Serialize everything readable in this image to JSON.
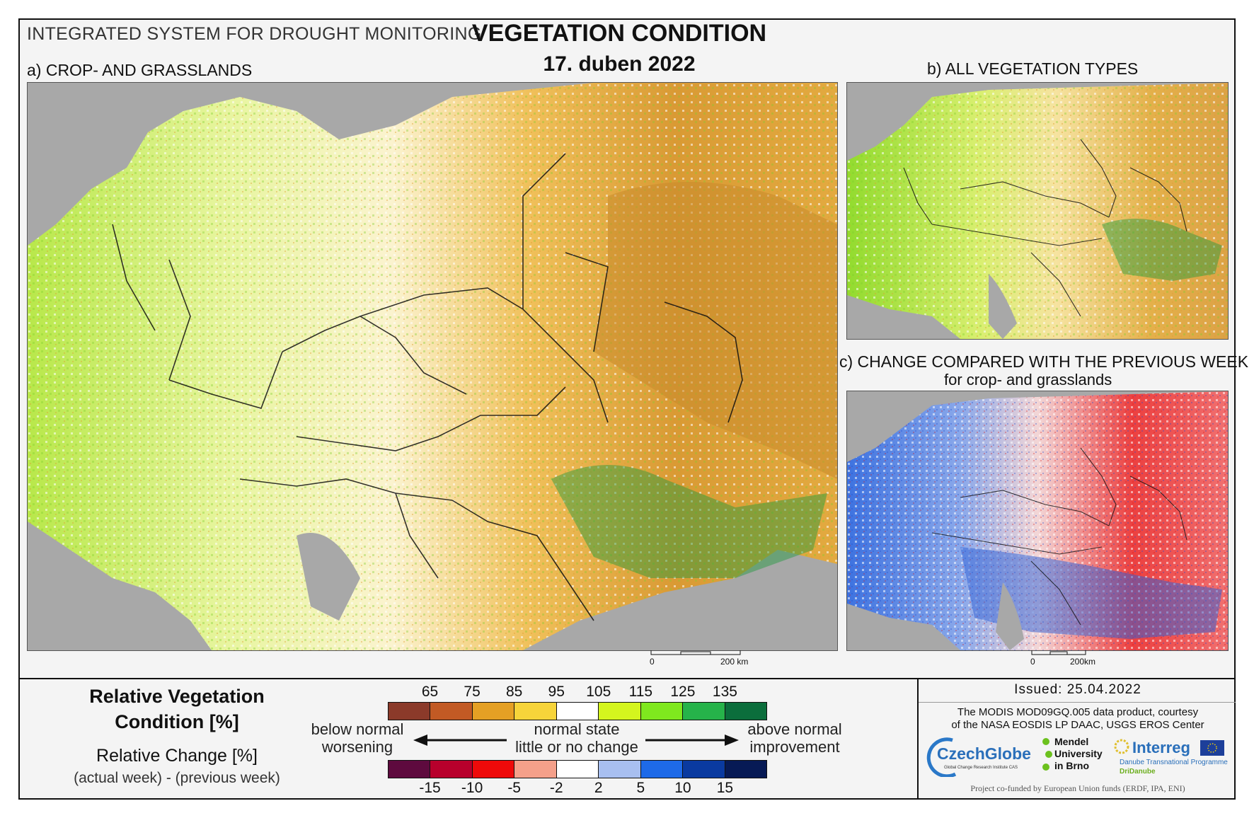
{
  "header": {
    "system_title": "INTEGRATED SYSTEM FOR DROUGHT MONITORING",
    "main_title": "VEGETATION CONDITION",
    "date": "17. duben 2022"
  },
  "panels": {
    "a_label": "a) CROP- AND GRASSLANDS",
    "b_label": "b) ALL VEGETATION TYPES",
    "c_label": "c) CHANGE COMPARED WITH THE PREVIOUS WEEK",
    "c_sublabel": "for crop- and grasslands"
  },
  "scalebars": {
    "a": {
      "zero": "0",
      "end": "200 km"
    },
    "b": {
      "zero": "0",
      "end": "200km"
    }
  },
  "legend": {
    "rvc_title_line1": "Relative Vegetation",
    "rvc_title_line2": "Condition [%]",
    "change_title": "Relative Change [%]",
    "change_subtitle": "(actual week) - (previous week)",
    "condition_ticks": [
      "65",
      "75",
      "85",
      "95",
      "105",
      "115",
      "125",
      "135"
    ],
    "condition_colors": [
      "#8b3a2a",
      "#c25a24",
      "#e5a024",
      "#f7d43a",
      "#ffffff",
      "#d4f51e",
      "#7fe81e",
      "#26b34a",
      "#0b6e3c"
    ],
    "change_ticks": [
      "-15",
      "-10",
      "-5",
      "-2",
      "2",
      "5",
      "10",
      "15"
    ],
    "change_colors": [
      "#5e0a3e",
      "#b8002c",
      "#ee0a0a",
      "#f5a08a",
      "#ffffff",
      "#a8bff0",
      "#1e6ae8",
      "#0a3aa0",
      "#071a55"
    ],
    "left_top": "below normal",
    "left_bottom": "worsening",
    "center_top": "normal state",
    "center_bottom": "little or no change",
    "right_top": "above normal",
    "right_bottom": "improvement"
  },
  "info": {
    "issued": "Issued: 25.04.2022",
    "credit_line1": "The MODIS MOD09GQ.005 data product, courtesy",
    "credit_line2": "of the NASA EOSDIS LP DAAC, USGS EROS Center",
    "czechglobe": "CzechGlobe",
    "czechglobe_sub": "Global Change Research Institute CAS",
    "mendel_1": "Mendel",
    "mendel_2": "University",
    "mendel_3": "in Brno",
    "interreg": "Interreg",
    "interreg_sub": "Danube Transnational Programme",
    "dridanube": "DriDanube",
    "funding": "Project co-funded by European Union funds (ERDF, IPA, ENI)"
  }
}
